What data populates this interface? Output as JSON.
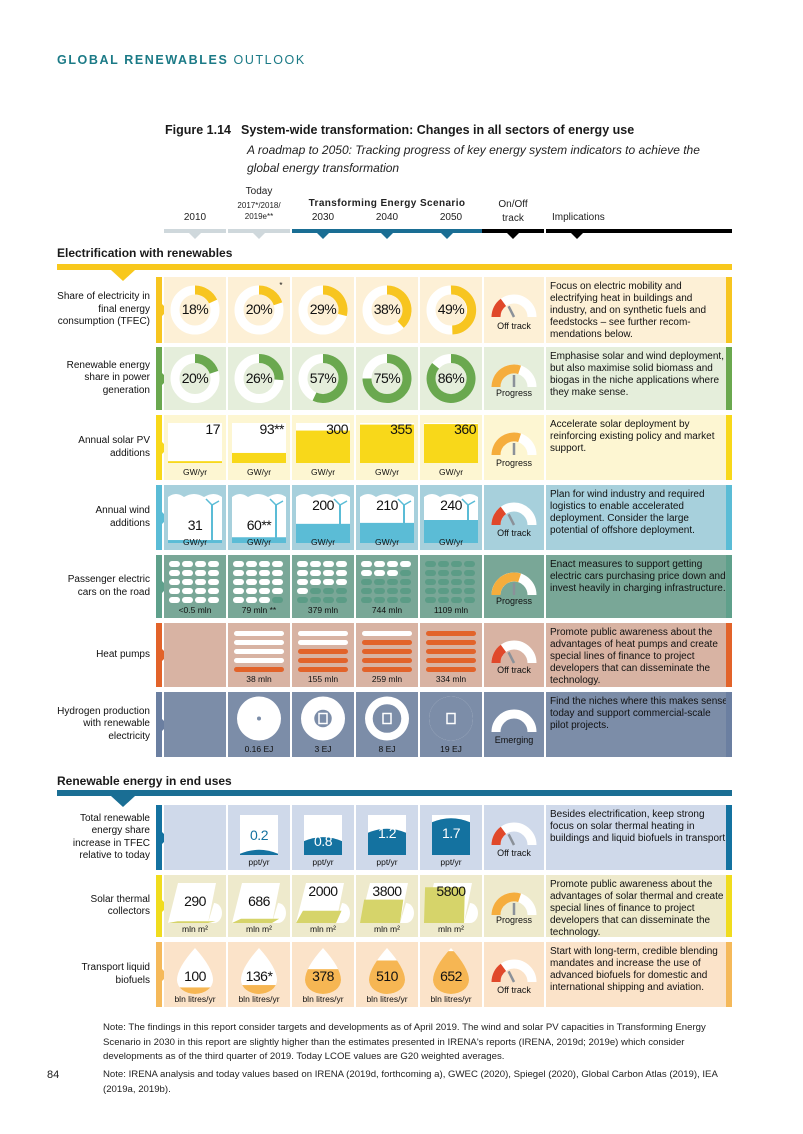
{
  "running_header": {
    "bold": "GLOBAL RENEWABLES",
    "rest": "OUTLOOK"
  },
  "figure": {
    "number": "Figure 1.14",
    "title": "System-wide transformation: Changes in all sectors of energy use",
    "subtitle": "A roadmap to 2050: Tracking progress of key energy system indicators to achieve the global energy transformation"
  },
  "columns": {
    "c2010": "2010",
    "today": "Today",
    "today_years1": "2017*/2018/",
    "today_years2": "2019e**",
    "scenario": "Transforming Energy Scenario",
    "c2030": "2030",
    "c2040": "2040",
    "c2050": "2050",
    "track1": "On/Off",
    "track2": "track",
    "implications": "Implications"
  },
  "colors": {
    "header": "#1b7a86",
    "scenario_bar": "#1a6e94",
    "today_bar": "#cfd8dc",
    "off_track": "#e0482a",
    "progress": "#f5ad3c"
  },
  "sections": [
    {
      "title": "Electrification with renewables",
      "color": "#f8c81c"
    },
    {
      "title": "Renewable energy in end uses",
      "color": "#1a6e94"
    }
  ],
  "rows": [
    {
      "label": "Share of electricity in final energy consumption (TFEC)",
      "type": "donut",
      "bg": "#fdf0d6",
      "accent": "#f7c520",
      "fill": "#f7c520",
      "values": [
        "18%",
        "20%",
        "29%",
        "38%",
        "49%"
      ],
      "numbers": [
        18,
        20,
        29,
        38,
        49
      ],
      "notes": [
        "",
        "*",
        "",
        "",
        ""
      ],
      "units": [],
      "track": "Off track",
      "track_level": 0.3,
      "implication": "Focus on electric mobility and electrifying heat in buildings and industry, and on synthetic fuels and feedstocks – see further recom-mendations below."
    },
    {
      "label": "Renewable energy share in power generation",
      "type": "donut",
      "bg": "#e5eedb",
      "accent": "#6aa84f",
      "fill": "#6aa84f",
      "values": [
        "20%",
        "26%",
        "57%",
        "75%",
        "86%"
      ],
      "numbers": [
        20,
        26,
        57,
        75,
        86
      ],
      "notes": [
        "",
        "",
        "",
        "",
        ""
      ],
      "units": [],
      "track": "Progress",
      "track_level": 0.6,
      "implication": "Emphasise solar and wind deployment, but also maximise solid biomass and biogas in the niche applications where they make sense."
    },
    {
      "label": "Annual solar PV additions",
      "type": "solar",
      "bg": "#fdf6d2",
      "accent": "#f8d81a",
      "fill": "#f8d81a",
      "values": [
        "17",
        "93**",
        "300",
        "355",
        "360"
      ],
      "numbers": [
        17,
        93,
        300,
        355,
        360
      ],
      "units": [
        "GW/yr",
        "GW/yr",
        "GW/yr",
        "GW/yr",
        "GW/yr"
      ],
      "track": "Progress",
      "track_level": 0.6,
      "implication": "Accelerate solar deployment by reinforcing existing policy and market support."
    },
    {
      "label": "Annual wind additions",
      "type": "wind",
      "bg": "#a7d0dc",
      "accent": "#5bbcd6",
      "fill": "#5bbcd6",
      "values": [
        "31",
        "60**",
        "200",
        "210",
        "240"
      ],
      "numbers": [
        31,
        60,
        200,
        210,
        240
      ],
      "units": [
        "GW/yr",
        "GW/yr",
        "GW/yr",
        "GW/yr",
        "GW/yr"
      ],
      "track": "Off track",
      "track_level": 0.3,
      "implication": "Plan for wind industry and required logistics to enable accelerated deployment. Consider the large potential of offshore deployment."
    },
    {
      "label": "Passenger electric cars on the road",
      "type": "cars",
      "bg": "#79a797",
      "accent": "#5fa08b",
      "fill": "#5b9c86",
      "values": [
        "<0.5 mln",
        "79 mln **",
        "379 mln",
        "744 mln",
        "1109 mln"
      ],
      "numbers": [
        0.5,
        79,
        379,
        744,
        1109
      ],
      "units": [],
      "track": "Progress",
      "track_level": 0.6,
      "implication": "Enact measures to support getting electric cars purchasing price down and invest heavily in charging infrastructure."
    },
    {
      "label": "Heat pumps",
      "type": "heat",
      "bg": "#d8b3a3",
      "accent": "#e2632a",
      "fill": "#e2632a",
      "values": [
        "",
        "38 mln",
        "155 mln",
        "259 mln",
        "334 mln"
      ],
      "numbers": [
        null,
        38,
        155,
        259,
        334
      ],
      "units": [],
      "track": "Off track",
      "track_level": 0.3,
      "implication": "Promote public awareness about the advantages of heat pumps and create special lines of finance to project developers that can disseminate the technology."
    },
    {
      "label": "Hydrogen production with renewable electricity",
      "type": "hydrogen",
      "bg": "#7c8da8",
      "accent": "#6b7fa1",
      "fill": "#ffffff",
      "values": [
        "",
        "0.16 EJ",
        "3 EJ",
        "8 EJ",
        "19 EJ"
      ],
      "numbers": [
        null,
        0.16,
        3,
        8,
        19
      ],
      "units": [],
      "track": "Emerging",
      "track_level": null,
      "implication": "Find the niches where this makes sense today and support commercial-scale pilot projects."
    },
    {
      "label": "Total renewable energy share increase in TFEC relative to today",
      "type": "wave",
      "bg": "#cfd9ea",
      "accent": "#1472a0",
      "fill": "#1472a0",
      "values": [
        "",
        "0.2",
        "0.8",
        "1.2",
        "1.7"
      ],
      "numbers": [
        null,
        0.2,
        0.8,
        1.2,
        1.7
      ],
      "units": [
        "",
        "ppt/yr",
        "ppt/yr",
        "ppt/yr",
        "ppt/yr"
      ],
      "track": "Off track",
      "track_level": 0.3,
      "implication": "Besides electrification, keep strong focus on solar thermal heating in buildings and liquid biofuels in transport."
    },
    {
      "label": "Solar thermal collectors",
      "type": "thermal",
      "bg": "#eeeacc",
      "accent": "#f0dc1e",
      "fill": "#d6d46a",
      "values": [
        "290",
        "686",
        "2000",
        "3800",
        "5800"
      ],
      "numbers": [
        290,
        686,
        2000,
        3800,
        5800
      ],
      "units": [
        "mln m²",
        "mln m²",
        "mln m²",
        "mln m²",
        "mln m²"
      ],
      "track": "Progress",
      "track_level": 0.6,
      "implication": "Promote public awareness about the advantages of solar thermal and create special lines of finance to project developers that can disseminate the technology."
    },
    {
      "label": "Transport liquid biofuels",
      "type": "drop",
      "bg": "#fbe3c9",
      "accent": "#f5b95a",
      "fill": "#f6b653",
      "values": [
        "100",
        "136*",
        "378",
        "510",
        "652"
      ],
      "numbers": [
        100,
        136,
        378,
        510,
        652
      ],
      "units": [
        "bln litres/yr",
        "bln litres/yr",
        "bln litres/yr",
        "bln litres/yr",
        "bln litres/yr"
      ],
      "track": "Off track",
      "track_level": 0.3,
      "implication": "Start with long-term, credible blending mandates and increase the use of advanced biofuels for domestic and international shipping and aviation."
    }
  ],
  "notes": {
    "note1": "Note: The findings in this report consider targets and developments as of April 2019. The wind and solar PV capacities in Transforming Energy Scenario in 2030 in this report are slightly higher than the estimates presented in IRENA's reports (IRENA, 2019d; 2019e) which consider developments as of the third quarter of 2019. Today LCOE values are G20 weighted averages.",
    "note2": "Note: IRENA analysis and today values based on IRENA (2019d, forthcoming a), GWEC (2020), Spiegel (2020), Global Carbon Atlas (2019), IEA (2019a, 2019b)."
  },
  "page_number": "84"
}
